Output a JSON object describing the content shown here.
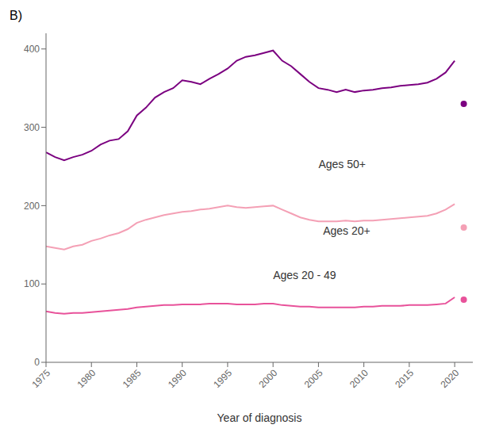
{
  "chart_data": {
    "type": "line",
    "title": "B)",
    "x_label": "Year of diagnosis",
    "xlim": [
      1975,
      2022
    ],
    "xticks": [
      1975,
      1980,
      1985,
      1990,
      1995,
      2000,
      2005,
      2010,
      2015,
      2020
    ],
    "ylim": [
      0,
      420
    ],
    "yticks": [
      0,
      100,
      200,
      300,
      400
    ],
    "grid": false,
    "x": [
      1975,
      1976,
      1977,
      1978,
      1979,
      1980,
      1981,
      1982,
      1983,
      1984,
      1985,
      1986,
      1987,
      1988,
      1989,
      1990,
      1991,
      1992,
      1993,
      1994,
      1995,
      1996,
      1997,
      1998,
      1999,
      2000,
      2001,
      2002,
      2003,
      2004,
      2005,
      2006,
      2007,
      2008,
      2009,
      2010,
      2011,
      2012,
      2013,
      2014,
      2015,
      2016,
      2017,
      2018,
      2019,
      2020
    ],
    "series": [
      {
        "name": "Ages 50+",
        "color": "#7B0080",
        "label_x": 2005,
        "label_y": 248,
        "dot_x": 2021,
        "dot_y": 330,
        "values": [
          268,
          262,
          258,
          262,
          265,
          270,
          278,
          283,
          285,
          295,
          315,
          325,
          338,
          345,
          350,
          360,
          358,
          355,
          362,
          368,
          375,
          385,
          390,
          392,
          395,
          398,
          385,
          378,
          368,
          358,
          350,
          348,
          345,
          348,
          345,
          347,
          348,
          350,
          351,
          353,
          354,
          355,
          357,
          362,
          370,
          385
        ]
      },
      {
        "name": "Ages 20+",
        "color": "#F4A0B5",
        "label_x": 2005.5,
        "label_y": 163,
        "dot_x": 2021,
        "dot_y": 172,
        "values": [
          148,
          146,
          144,
          148,
          150,
          155,
          158,
          162,
          165,
          170,
          178,
          182,
          185,
          188,
          190,
          192,
          193,
          195,
          196,
          198,
          200,
          198,
          197,
          198,
          199,
          200,
          195,
          190,
          185,
          182,
          180,
          180,
          180,
          181,
          180,
          181,
          181,
          182,
          183,
          184,
          185,
          186,
          187,
          190,
          195,
          202
        ]
      },
      {
        "name": "Ages 20 - 49",
        "color": "#E8529A",
        "label_x": 2000,
        "label_y": 106,
        "dot_x": 2021,
        "dot_y": 80,
        "values": [
          65,
          63,
          62,
          63,
          63,
          64,
          65,
          66,
          67,
          68,
          70,
          71,
          72,
          73,
          73,
          74,
          74,
          74,
          75,
          75,
          75,
          74,
          74,
          74,
          75,
          75,
          73,
          72,
          71,
          71,
          70,
          70,
          70,
          70,
          70,
          71,
          71,
          72,
          72,
          72,
          73,
          73,
          73,
          74,
          75,
          83
        ]
      }
    ]
  }
}
